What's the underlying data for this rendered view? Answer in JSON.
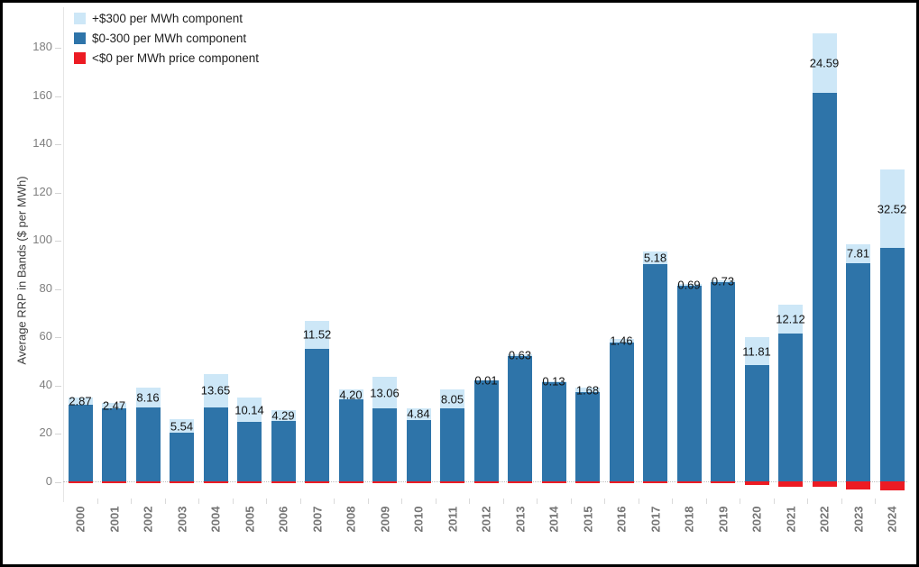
{
  "legend": {
    "items": [
      {
        "label": "+$300 per MWh component",
        "color": "#cde7f7"
      },
      {
        "label": "$0-300 per MWh component",
        "color": "#2e74a9"
      },
      {
        "label": "<$0 per MWh price component",
        "color": "#ec1b23"
      }
    ]
  },
  "chart_data": {
    "type": "bar",
    "stacked": true,
    "title": "",
    "xlabel": "",
    "ylabel": "Average RRP in Bands ($ per MWh)",
    "ylim": [
      -5,
      190
    ],
    "yticks": [
      0,
      20,
      40,
      60,
      80,
      100,
      120,
      140,
      160,
      180
    ],
    "grid": false,
    "legend_position": "top-left",
    "categories": [
      "2000",
      "2001",
      "2002",
      "2003",
      "2004",
      "2005",
      "2006",
      "2007",
      "2008",
      "2009",
      "2010",
      "2011",
      "2012",
      "2013",
      "2014",
      "2015",
      "2016",
      "2017",
      "2018",
      "2019",
      "2020",
      "2021",
      "2022",
      "2023",
      "2024"
    ],
    "series": [
      {
        "name": "+$300 per MWh component",
        "color": "#cde7f7",
        "values": [
          2.87,
          2.47,
          8.16,
          5.54,
          13.65,
          10.14,
          4.29,
          11.52,
          4.2,
          13.06,
          4.84,
          8.05,
          0.01,
          0.63,
          0.13,
          1.68,
          1.46,
          5.18,
          0.69,
          0.73,
          11.81,
          12.12,
          24.59,
          7.81,
          32.52
        ]
      },
      {
        "name": "$0-300 per MWh component",
        "color": "#2e74a9",
        "values": [
          32.1,
          30.5,
          31.1,
          20.5,
          31.1,
          24.9,
          25.5,
          55.4,
          34.2,
          30.5,
          25.8,
          30.5,
          42.3,
          52.3,
          41.7,
          37.4,
          57.9,
          90.3,
          81.5,
          82.8,
          48.4,
          61.6,
          161.3,
          90.9,
          97.1
        ]
      },
      {
        "name": "<$0 per MWh price component",
        "color": "#ec1b23",
        "values": [
          -0.3,
          -0.3,
          -0.3,
          -0.3,
          -0.3,
          -0.3,
          -0.3,
          -0.4,
          -0.3,
          -0.3,
          -0.4,
          -0.4,
          -0.4,
          -0.4,
          -0.4,
          -0.4,
          -0.5,
          -0.5,
          -0.5,
          -0.5,
          -1.2,
          -2.0,
          -2.0,
          -3.1,
          -3.5
        ]
      }
    ],
    "bar_labels": {
      "series": "+$300 per MWh component",
      "values": [
        "2.87",
        "2.47",
        "8.16",
        "5.54",
        "13.65",
        "10.14",
        "4.29",
        "11.52",
        "4.20",
        "13.06",
        "4.84",
        "8.05",
        "0.01",
        "0.63",
        "0.13",
        "1.68",
        "1.46",
        "5.18",
        "0.69",
        "0.73",
        "11.81",
        "12.12",
        "24.59",
        "7.81",
        "32.52"
      ]
    }
  }
}
